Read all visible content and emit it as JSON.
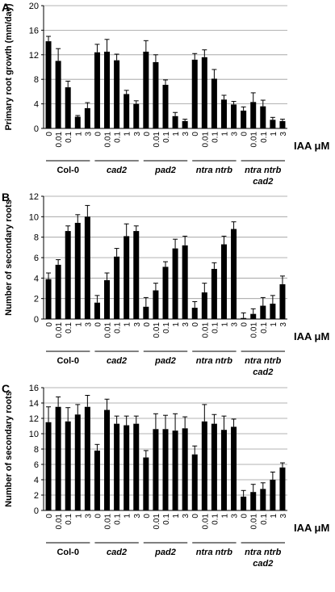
{
  "chart_data": [
    {
      "panel": "A",
      "type": "bar",
      "ylabel": "Primary root growth (mm/day)",
      "ylim": [
        0,
        20
      ],
      "yticks": [
        0,
        4,
        8,
        12,
        16,
        20
      ],
      "grid": true,
      "unit_label": "IAA  μM",
      "groups": [
        {
          "name": "Col-0",
          "lines": [
            "Col-0"
          ],
          "italic": false
        },
        {
          "name": "cad2",
          "lines": [
            "cad2"
          ],
          "italic": true
        },
        {
          "name": "pad2",
          "lines": [
            "pad2"
          ],
          "italic": true
        },
        {
          "name": "ntra ntrb",
          "lines": [
            "ntra ntrb"
          ],
          "italic": true
        },
        {
          "name": "ntra ntrb cad2",
          "lines": [
            "ntra ntrb",
            "cad2"
          ],
          "italic": true
        }
      ],
      "concentrations": [
        "0",
        "0.01",
        "0.1",
        "1",
        "3"
      ],
      "values": [
        [
          14.2,
          11.0,
          6.7,
          1.9,
          3.3
        ],
        [
          12.4,
          12.5,
          11.1,
          5.6,
          4.0
        ],
        [
          12.5,
          10.8,
          7.1,
          2.0,
          1.2
        ],
        [
          11.2,
          11.6,
          8.1,
          4.7,
          3.9
        ],
        [
          2.9,
          4.3,
          3.6,
          1.4,
          1.2
        ]
      ],
      "errors": [
        [
          0.8,
          2.0,
          1.0,
          0.2,
          0.9
        ],
        [
          1.3,
          2.0,
          1.0,
          0.6,
          0.5
        ],
        [
          1.8,
          1.2,
          0.8,
          0.6,
          0.3
        ],
        [
          1.0,
          1.2,
          1.5,
          0.7,
          0.5
        ],
        [
          0.6,
          1.5,
          1.0,
          0.4,
          0.3
        ]
      ]
    },
    {
      "panel": "B",
      "type": "bar",
      "ylabel": "Number of secondary roots",
      "ylim": [
        0,
        12
      ],
      "yticks": [
        0,
        2,
        4,
        6,
        8,
        10,
        12
      ],
      "grid": true,
      "unit_label": "IAA  μM",
      "groups": [
        {
          "name": "Col-0",
          "lines": [
            "Col-0"
          ],
          "italic": false
        },
        {
          "name": "cad2",
          "lines": [
            "cad2"
          ],
          "italic": true
        },
        {
          "name": "pad2",
          "lines": [
            "pad2"
          ],
          "italic": true
        },
        {
          "name": "ntra ntrb",
          "lines": [
            "ntra ntrb"
          ],
          "italic": true
        },
        {
          "name": "ntra ntrb cad2",
          "lines": [
            "ntra ntrb",
            "cad2"
          ],
          "italic": true
        }
      ],
      "concentrations": [
        "0",
        "0.01",
        "0.1",
        "1",
        "3"
      ],
      "values": [
        [
          3.9,
          5.3,
          8.6,
          9.4,
          10.0
        ],
        [
          1.6,
          3.8,
          6.1,
          8.1,
          8.6
        ],
        [
          1.2,
          2.8,
          5.1,
          6.9,
          7.2
        ],
        [
          1.1,
          2.6,
          4.9,
          7.3,
          8.8
        ],
        [
          0.1,
          0.5,
          1.3,
          1.5,
          3.4
        ]
      ],
      "errors": [
        [
          0.6,
          0.5,
          0.5,
          0.8,
          1.1
        ],
        [
          0.7,
          0.7,
          0.8,
          1.2,
          0.5
        ],
        [
          0.9,
          0.7,
          0.5,
          0.9,
          0.9
        ],
        [
          0.6,
          0.9,
          0.6,
          0.8,
          0.7
        ],
        [
          0.5,
          0.5,
          0.8,
          0.8,
          0.8
        ]
      ]
    },
    {
      "panel": "C",
      "type": "bar",
      "ylabel": "Number of secondary roots",
      "ylim": [
        0,
        16
      ],
      "yticks": [
        0,
        2,
        4,
        6,
        8,
        10,
        12,
        14,
        16
      ],
      "grid": true,
      "unit_label": "IAA  μM",
      "groups": [
        {
          "name": "Col-0",
          "lines": [
            "Col-0"
          ],
          "italic": false
        },
        {
          "name": "cad2",
          "lines": [
            "cad2"
          ],
          "italic": true
        },
        {
          "name": "pad2",
          "lines": [
            "pad2"
          ],
          "italic": true
        },
        {
          "name": "ntra ntrb",
          "lines": [
            "ntra ntrb"
          ],
          "italic": true
        },
        {
          "name": "ntra ntrb cad2",
          "lines": [
            "ntra ntrb",
            "cad2"
          ],
          "italic": true
        }
      ],
      "concentrations": [
        "0",
        "0.01",
        "0.1",
        "1",
        "3"
      ],
      "values": [
        [
          11.5,
          13.5,
          11.6,
          12.5,
          13.5
        ],
        [
          7.8,
          13.1,
          11.3,
          11.1,
          11.3
        ],
        [
          6.9,
          10.6,
          10.6,
          10.4,
          10.7
        ],
        [
          7.3,
          11.6,
          11.3,
          10.5,
          10.9
        ],
        [
          1.8,
          2.4,
          2.8,
          4.0,
          5.6
        ]
      ],
      "errors": [
        [
          2.0,
          1.3,
          1.8,
          1.3,
          1.5
        ],
        [
          0.8,
          1.4,
          1.0,
          1.2,
          1.0
        ],
        [
          0.9,
          2.0,
          1.8,
          2.2,
          1.5
        ],
        [
          1.1,
          2.2,
          1.2,
          1.8,
          1.0
        ],
        [
          0.8,
          1.0,
          0.8,
          1.0,
          0.6
        ]
      ]
    }
  ]
}
